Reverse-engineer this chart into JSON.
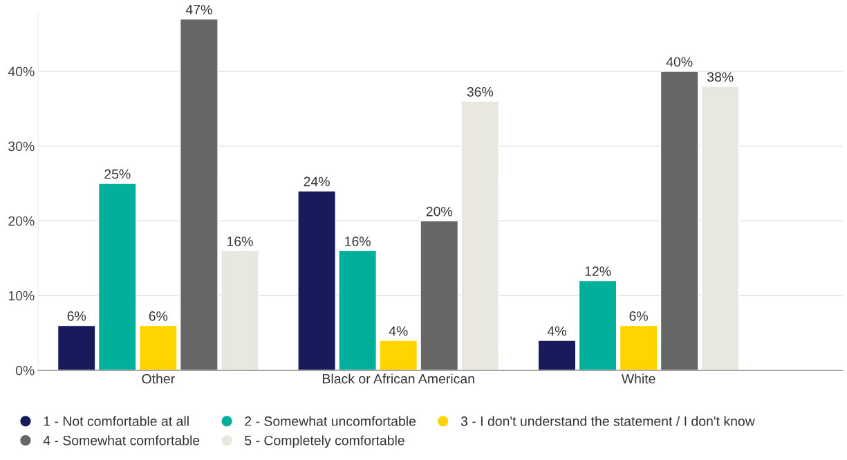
{
  "chart_data": {
    "type": "bar",
    "categories": [
      "Other",
      "Black or African American",
      "White"
    ],
    "series": [
      {
        "name": "1 - Not comfortable at all",
        "color": "#181a5c",
        "values": [
          6,
          24,
          4
        ],
        "value_labels": [
          "6%",
          "24%",
          "4%"
        ]
      },
      {
        "name": "2 - Somewhat uncomfortable",
        "color": "#00b09b",
        "values": [
          25,
          16,
          12
        ],
        "value_labels": [
          "25%",
          "16%",
          "12%"
        ]
      },
      {
        "name": "3 - I don't understand the statement / I don't know",
        "color": "#ffd400",
        "values": [
          6,
          4,
          6
        ],
        "value_labels": [
          "6%",
          "4%",
          "6%"
        ]
      },
      {
        "name": "4 - Somewhat comfortable",
        "color": "#666666",
        "values": [
          47,
          20,
          40
        ],
        "value_labels": [
          "47%",
          "20%",
          "40%"
        ]
      },
      {
        "name": "5 - Completely comfortable",
        "color": "#e8e8e0",
        "values": [
          16,
          36,
          38
        ],
        "value_labels": [
          "16%",
          "36%",
          "38%"
        ]
      }
    ],
    "ylim": [
      0,
      48
    ],
    "yticks": [
      {
        "value": 0,
        "label": "0%"
      },
      {
        "value": 10,
        "label": "10%"
      },
      {
        "value": 20,
        "label": "20%"
      },
      {
        "value": 30,
        "label": "30%"
      },
      {
        "value": 40,
        "label": "40%"
      }
    ],
    "grid": "y",
    "legend": "bottom",
    "marker": "circle"
  }
}
